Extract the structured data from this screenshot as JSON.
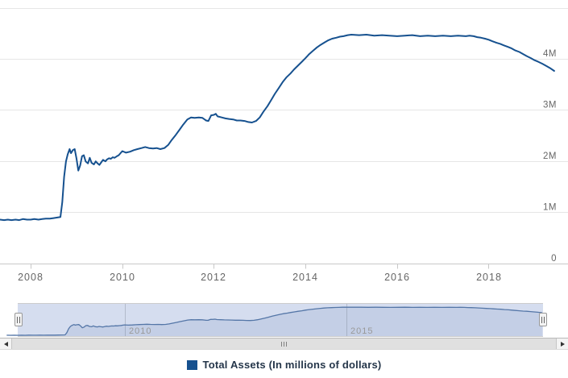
{
  "chart_data": {
    "type": "line",
    "title": "",
    "xlabel": "",
    "ylabel": "",
    "grid": "horizontal",
    "legend_position": "bottom-center",
    "x_axis": {
      "min": 2007.33,
      "max": 2019.73,
      "ticks": [
        {
          "year": 2008,
          "label": "2008"
        },
        {
          "year": 2010,
          "label": "2010"
        },
        {
          "year": 2012,
          "label": "2012"
        },
        {
          "year": 2014,
          "label": "2014"
        },
        {
          "year": 2016,
          "label": "2016"
        },
        {
          "year": 2018,
          "label": "2018"
        }
      ]
    },
    "y_axis": {
      "min": 0,
      "max": 5,
      "unit": "millions of dollars",
      "ticks": [
        {
          "value": 4,
          "label": "4M"
        },
        {
          "value": 3,
          "label": "3M"
        },
        {
          "value": 2,
          "label": "2M"
        },
        {
          "value": 1,
          "label": "1M"
        },
        {
          "value": 0,
          "label": "0"
        }
      ]
    },
    "series": [
      {
        "name": "Total Assets (In millions of dollars)",
        "color": "#16518f",
        "points": [
          [
            2007.33,
            0.86
          ],
          [
            2007.42,
            0.85
          ],
          [
            2007.5,
            0.86
          ],
          [
            2007.58,
            0.85
          ],
          [
            2007.67,
            0.86
          ],
          [
            2007.75,
            0.85
          ],
          [
            2007.83,
            0.87
          ],
          [
            2007.92,
            0.86
          ],
          [
            2008.0,
            0.86
          ],
          [
            2008.08,
            0.87
          ],
          [
            2008.17,
            0.86
          ],
          [
            2008.25,
            0.87
          ],
          [
            2008.33,
            0.88
          ],
          [
            2008.42,
            0.88
          ],
          [
            2008.5,
            0.89
          ],
          [
            2008.58,
            0.9
          ],
          [
            2008.65,
            0.91
          ],
          [
            2008.69,
            1.2
          ],
          [
            2008.73,
            1.7
          ],
          [
            2008.77,
            2.0
          ],
          [
            2008.81,
            2.14
          ],
          [
            2008.85,
            2.24
          ],
          [
            2008.88,
            2.16
          ],
          [
            2008.92,
            2.22
          ],
          [
            2008.96,
            2.24
          ],
          [
            2009.0,
            2.06
          ],
          [
            2009.04,
            1.82
          ],
          [
            2009.08,
            1.92
          ],
          [
            2009.12,
            2.1
          ],
          [
            2009.16,
            2.12
          ],
          [
            2009.2,
            2.0
          ],
          [
            2009.25,
            1.96
          ],
          [
            2009.29,
            2.07
          ],
          [
            2009.33,
            1.97
          ],
          [
            2009.38,
            1.94
          ],
          [
            2009.42,
            2.0
          ],
          [
            2009.46,
            1.96
          ],
          [
            2009.5,
            1.93
          ],
          [
            2009.54,
            1.98
          ],
          [
            2009.58,
            2.03
          ],
          [
            2009.63,
            2.0
          ],
          [
            2009.67,
            2.04
          ],
          [
            2009.71,
            2.06
          ],
          [
            2009.75,
            2.05
          ],
          [
            2009.79,
            2.08
          ],
          [
            2009.83,
            2.07
          ],
          [
            2009.88,
            2.1
          ],
          [
            2009.92,
            2.12
          ],
          [
            2009.96,
            2.16
          ],
          [
            2010.0,
            2.2
          ],
          [
            2010.08,
            2.17
          ],
          [
            2010.17,
            2.19
          ],
          [
            2010.25,
            2.22
          ],
          [
            2010.33,
            2.24
          ],
          [
            2010.42,
            2.26
          ],
          [
            2010.5,
            2.28
          ],
          [
            2010.58,
            2.26
          ],
          [
            2010.67,
            2.25
          ],
          [
            2010.75,
            2.26
          ],
          [
            2010.83,
            2.24
          ],
          [
            2010.92,
            2.26
          ],
          [
            2011.0,
            2.32
          ],
          [
            2011.08,
            2.42
          ],
          [
            2011.17,
            2.52
          ],
          [
            2011.25,
            2.62
          ],
          [
            2011.33,
            2.72
          ],
          [
            2011.42,
            2.82
          ],
          [
            2011.5,
            2.86
          ],
          [
            2011.58,
            2.85
          ],
          [
            2011.67,
            2.86
          ],
          [
            2011.75,
            2.85
          ],
          [
            2011.83,
            2.8
          ],
          [
            2011.88,
            2.79
          ],
          [
            2011.94,
            2.9
          ],
          [
            2012.0,
            2.91
          ],
          [
            2012.04,
            2.93
          ],
          [
            2012.08,
            2.88
          ],
          [
            2012.17,
            2.86
          ],
          [
            2012.25,
            2.84
          ],
          [
            2012.33,
            2.83
          ],
          [
            2012.42,
            2.82
          ],
          [
            2012.5,
            2.8
          ],
          [
            2012.58,
            2.8
          ],
          [
            2012.67,
            2.79
          ],
          [
            2012.75,
            2.77
          ],
          [
            2012.83,
            2.76
          ],
          [
            2012.92,
            2.79
          ],
          [
            2013.0,
            2.86
          ],
          [
            2013.08,
            2.97
          ],
          [
            2013.17,
            3.08
          ],
          [
            2013.25,
            3.2
          ],
          [
            2013.33,
            3.32
          ],
          [
            2013.42,
            3.44
          ],
          [
            2013.5,
            3.55
          ],
          [
            2013.58,
            3.64
          ],
          [
            2013.67,
            3.72
          ],
          [
            2013.75,
            3.8
          ],
          [
            2013.83,
            3.87
          ],
          [
            2013.92,
            3.95
          ],
          [
            2014.0,
            4.02
          ],
          [
            2014.08,
            4.1
          ],
          [
            2014.17,
            4.17
          ],
          [
            2014.25,
            4.23
          ],
          [
            2014.33,
            4.28
          ],
          [
            2014.42,
            4.33
          ],
          [
            2014.5,
            4.37
          ],
          [
            2014.58,
            4.4
          ],
          [
            2014.67,
            4.42
          ],
          [
            2014.75,
            4.44
          ],
          [
            2014.83,
            4.45
          ],
          [
            2014.92,
            4.47
          ],
          [
            2015.0,
            4.48
          ],
          [
            2015.17,
            4.47
          ],
          [
            2015.33,
            4.48
          ],
          [
            2015.5,
            4.46
          ],
          [
            2015.67,
            4.47
          ],
          [
            2015.83,
            4.46
          ],
          [
            2016.0,
            4.45
          ],
          [
            2016.17,
            4.46
          ],
          [
            2016.33,
            4.47
          ],
          [
            2016.5,
            4.45
          ],
          [
            2016.67,
            4.46
          ],
          [
            2016.83,
            4.45
          ],
          [
            2017.0,
            4.46
          ],
          [
            2017.17,
            4.45
          ],
          [
            2017.33,
            4.46
          ],
          [
            2017.5,
            4.45
          ],
          [
            2017.58,
            4.46
          ],
          [
            2017.67,
            4.45
          ],
          [
            2017.75,
            4.43
          ],
          [
            2017.83,
            4.42
          ],
          [
            2017.92,
            4.4
          ],
          [
            2018.0,
            4.38
          ],
          [
            2018.08,
            4.35
          ],
          [
            2018.17,
            4.32
          ],
          [
            2018.25,
            4.3
          ],
          [
            2018.33,
            4.27
          ],
          [
            2018.42,
            4.24
          ],
          [
            2018.5,
            4.21
          ],
          [
            2018.58,
            4.17
          ],
          [
            2018.67,
            4.14
          ],
          [
            2018.75,
            4.1
          ],
          [
            2018.83,
            4.06
          ],
          [
            2018.92,
            4.02
          ],
          [
            2019.0,
            3.98
          ],
          [
            2019.08,
            3.95
          ],
          [
            2019.17,
            3.91
          ],
          [
            2019.25,
            3.87
          ],
          [
            2019.33,
            3.83
          ],
          [
            2019.43,
            3.77
          ]
        ]
      }
    ],
    "navigator": {
      "x_min": 2007.58,
      "x_max": 2019.45,
      "y_min": 0.75,
      "y_max": 4.6,
      "selected_range": "full",
      "mask_color": "#d5ddef",
      "line_color": "#5476a7",
      "area_color": "rgba(84,118,167,0.13)",
      "labels": [
        {
          "year": 2010,
          "label": "2010"
        },
        {
          "year": 2015,
          "label": "2015"
        }
      ]
    }
  },
  "legend": {
    "items": [
      {
        "label": "Total Assets (In millions of dollars)",
        "color": "#16518f"
      }
    ]
  },
  "colors": {
    "series_line": "#16518f",
    "grid_line": "#e6e6e6",
    "axis_label": "#666666",
    "navigator_label": "#999999",
    "legend_text": "#25364a"
  }
}
